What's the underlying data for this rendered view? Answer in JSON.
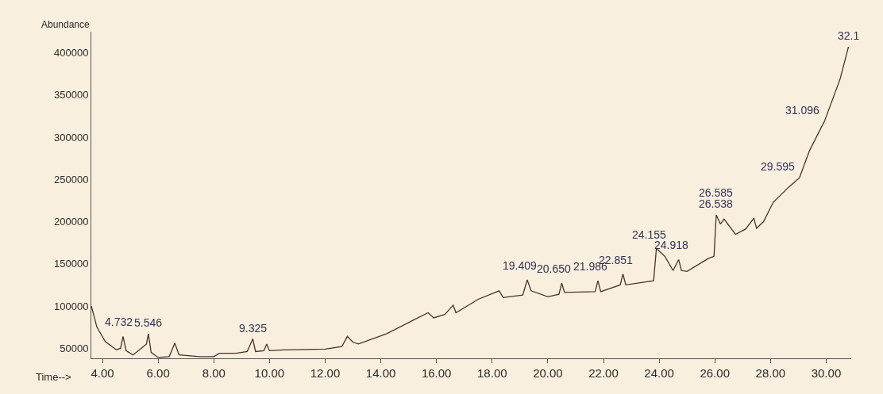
{
  "chart_data": {
    "type": "line",
    "xlabel": "Time-->",
    "ylabel": "Abundance",
    "x": [
      3.6,
      3.8,
      4.1,
      4.5,
      4.65,
      4.74,
      4.85,
      5.1,
      5.4,
      5.58,
      5.65,
      5.75,
      6.0,
      6.4,
      6.6,
      6.75,
      7.5,
      8.0,
      8.2,
      8.8,
      9.2,
      9.4,
      9.5,
      9.8,
      9.9,
      10.0,
      10.5,
      12.0,
      12.6,
      12.8,
      13.0,
      13.2,
      14.2,
      15.15,
      15.7,
      15.9,
      16.3,
      16.6,
      16.7,
      17.5,
      18.25,
      18.4,
      19.1,
      19.26,
      19.4,
      20.0,
      20.4,
      20.5,
      20.6,
      21.7,
      21.8,
      21.9,
      22.6,
      22.7,
      22.8,
      23.8,
      23.9,
      24.2,
      24.5,
      24.7,
      24.8,
      25.0,
      25.75,
      25.97,
      26.05,
      26.2,
      26.33,
      26.74,
      27.1,
      27.4,
      27.5,
      27.75,
      28.1,
      28.66,
      29.04,
      29.4,
      29.94,
      30.5,
      30.8
    ],
    "series": [
      {
        "color": "#4a3322",
        "values": [
          100000,
          75000,
          58000,
          48000,
          50000,
          64000,
          47000,
          42000,
          50000,
          55000,
          67000,
          45000,
          39000,
          40000,
          56000,
          42000,
          40000,
          40000,
          44000,
          44000,
          46000,
          61000,
          46000,
          47000,
          55000,
          47000,
          48000,
          49000,
          52000,
          64000,
          57000,
          55000,
          67000,
          83000,
          92000,
          86000,
          90000,
          101000,
          92000,
          108000,
          118000,
          110000,
          113000,
          131000,
          118000,
          111000,
          114000,
          127000,
          116000,
          117000,
          130000,
          117000,
          125000,
          138000,
          125000,
          130000,
          168000,
          159000,
          142000,
          155000,
          142000,
          141000,
          156000,
          159000,
          208000,
          197000,
          203000,
          185000,
          191000,
          204000,
          192000,
          200000,
          223000,
          241000,
          252000,
          284000,
          319000,
          369000,
          407000
        ]
      }
    ],
    "xlim": [
      3.6,
      30.9
    ],
    "ylim": [
      38000,
      425000
    ],
    "xticks": [
      {
        "value": 4,
        "label": "4.00"
      },
      {
        "value": 6,
        "label": "6.00"
      },
      {
        "value": 8,
        "label": "8.00"
      },
      {
        "value": 10,
        "label": "10.00"
      },
      {
        "value": 12,
        "label": "12.00"
      },
      {
        "value": 14,
        "label": "14.00"
      },
      {
        "value": 16,
        "label": "16.00"
      },
      {
        "value": 18,
        "label": "18.00"
      },
      {
        "value": 20,
        "label": "20.00"
      },
      {
        "value": 22,
        "label": "22.00"
      },
      {
        "value": 24,
        "label": "24.00"
      },
      {
        "value": 26,
        "label": "26.00"
      },
      {
        "value": 28,
        "label": "28.00"
      },
      {
        "value": 30,
        "label": "30.00"
      }
    ],
    "yticks": [
      50000,
      100000,
      150000,
      200000,
      250000,
      300000,
      350000,
      400000
    ],
    "annotations": [
      {
        "text": "4.732",
        "x": 4.74,
        "y": 64000
      },
      {
        "text": "5.546",
        "x": 5.65,
        "y": 67000
      },
      {
        "text": "9.325",
        "x": 9.4,
        "y": 61000
      },
      {
        "text": "19.409",
        "x": 19.26,
        "y": 131000
      },
      {
        "text": "20.650",
        "x": 20.5,
        "y": 127000
      },
      {
        "text": "21.986",
        "x": 21.8,
        "y": 130000
      },
      {
        "text": "22.851",
        "x": 22.7,
        "y": 138000
      },
      {
        "text": "24.155",
        "x": 23.9,
        "y": 168000
      },
      {
        "text": "24.918",
        "x": 24.7,
        "y": 155000
      },
      {
        "text": "26.538",
        "x": 26.05,
        "y": 208000
      },
      {
        "text": "26.585",
        "x": 26.05,
        "y": 208000
      },
      {
        "text": "29.595",
        "x": 29.04,
        "y": 252000
      },
      {
        "text": "31.096",
        "x": 29.94,
        "y": 319000
      },
      {
        "text": "32.1",
        "x": 30.8,
        "y": 407000
      }
    ],
    "grid": false,
    "marker": "none",
    "line_style": "solid"
  }
}
